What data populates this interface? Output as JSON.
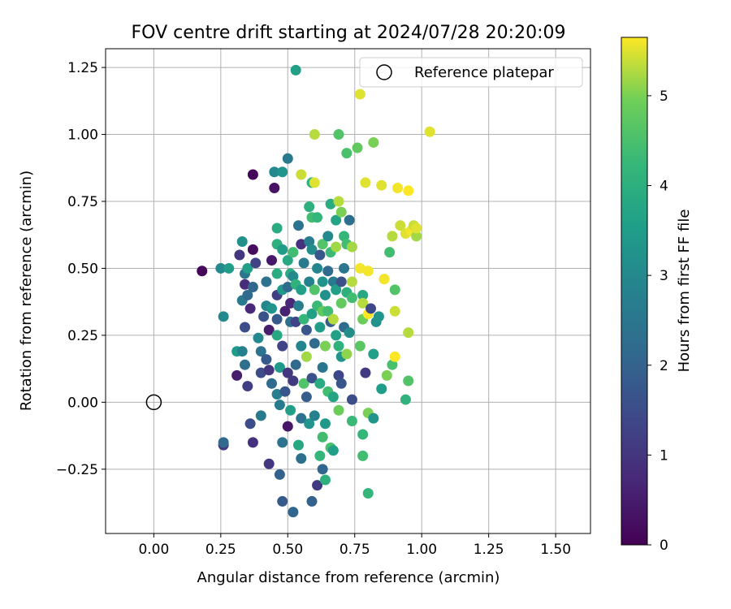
{
  "chart_data": {
    "type": "scatter",
    "title": "FOV centre drift starting at 2024/07/28 20:20:09",
    "xlabel": "Angular distance from reference (arcmin)",
    "ylabel": "Rotation from reference (arcmin)",
    "xlim": [
      -0.18,
      1.63
    ],
    "ylim": [
      -0.49,
      1.32
    ],
    "xticks": [
      "0.00",
      "0.25",
      "0.50",
      "0.75",
      "1.00",
      "1.25",
      "1.50"
    ],
    "yticks": [
      "−0.25",
      "0.00",
      "0.25",
      "0.50",
      "0.75",
      "1.00",
      "1.25"
    ],
    "grid": true,
    "legend": {
      "placement": "top-right",
      "label": "Reference platepar"
    },
    "reference_point": {
      "x": 0.0,
      "y": 0.0
    },
    "colorbar": {
      "label": "Hours from first FF file",
      "colormap": "viridis",
      "range": [
        0,
        5.65
      ],
      "ticks": [
        "0",
        "1",
        "2",
        "3",
        "4",
        "5"
      ]
    },
    "points": [
      [
        0.18,
        0.49,
        0.1
      ],
      [
        0.25,
        0.5,
        3.0
      ],
      [
        0.28,
        0.5,
        3.5
      ],
      [
        0.26,
        0.32,
        3.0
      ],
      [
        0.26,
        -0.16,
        1.1
      ],
      [
        0.26,
        -0.15,
        2.2
      ],
      [
        0.31,
        0.19,
        3.5
      ],
      [
        0.31,
        0.1,
        0.5
      ],
      [
        0.33,
        0.19,
        2.8
      ],
      [
        0.33,
        0.38,
        2.6
      ],
      [
        0.32,
        0.55,
        1.0
      ],
      [
        0.33,
        0.6,
        3.2
      ],
      [
        0.34,
        0.48,
        2.5
      ],
      [
        0.34,
        0.44,
        0.8
      ],
      [
        0.35,
        0.5,
        3.6
      ],
      [
        0.35,
        0.4,
        2.2
      ],
      [
        0.34,
        0.28,
        1.5
      ],
      [
        0.34,
        0.14,
        2.3
      ],
      [
        0.35,
        0.06,
        1.2
      ],
      [
        0.36,
        -0.08,
        1.5
      ],
      [
        0.36,
        0.35,
        0.7
      ],
      [
        0.37,
        0.57,
        0.2
      ],
      [
        0.37,
        0.43,
        2.1
      ],
      [
        0.38,
        0.52,
        1.3
      ],
      [
        0.37,
        0.85,
        0.1
      ],
      [
        0.37,
        -0.15,
        0.9
      ],
      [
        0.39,
        0.24,
        3.0
      ],
      [
        0.4,
        0.11,
        1.5
      ],
      [
        0.4,
        0.19,
        2.4
      ],
      [
        0.4,
        -0.05,
        2.6
      ],
      [
        0.41,
        0.32,
        1.6
      ],
      [
        0.42,
        0.45,
        2.4
      ],
      [
        0.42,
        0.36,
        2.9
      ],
      [
        0.42,
        0.16,
        1.8
      ],
      [
        0.43,
        0.12,
        1.0
      ],
      [
        0.43,
        0.27,
        0.5
      ],
      [
        0.43,
        -0.23,
        1.0
      ],
      [
        0.44,
        0.53,
        0.4
      ],
      [
        0.44,
        0.35,
        3.3
      ],
      [
        0.44,
        0.07,
        2.2
      ],
      [
        0.45,
        0.86,
        3.0
      ],
      [
        0.45,
        0.8,
        0.3
      ],
      [
        0.46,
        0.59,
        4.0
      ],
      [
        0.46,
        0.65,
        3.9
      ],
      [
        0.46,
        0.48,
        3.9
      ],
      [
        0.46,
        0.4,
        1.2
      ],
      [
        0.46,
        0.31,
        1.8
      ],
      [
        0.46,
        0.25,
        3.8
      ],
      [
        0.46,
        0.03,
        2.7
      ],
      [
        0.47,
        -0.01,
        2.6
      ],
      [
        0.47,
        -0.27,
        2.0
      ],
      [
        0.47,
        0.13,
        3.4
      ],
      [
        0.48,
        0.86,
        3.3
      ],
      [
        0.48,
        0.57,
        3.5
      ],
      [
        0.48,
        0.42,
        3.4
      ],
      [
        0.48,
        0.21,
        1.3
      ],
      [
        0.48,
        -0.37,
        1.8
      ],
      [
        0.48,
        -0.15,
        2.4
      ],
      [
        0.49,
        0.34,
        0.6
      ],
      [
        0.49,
        0.04,
        1.7
      ],
      [
        0.5,
        0.91,
        2.6
      ],
      [
        0.5,
        0.53,
        3.8
      ],
      [
        0.5,
        0.43,
        2.2
      ],
      [
        0.5,
        0.11,
        1.0
      ],
      [
        0.5,
        -0.09,
        0.4
      ],
      [
        0.51,
        0.48,
        3.9
      ],
      [
        0.51,
        0.37,
        0.7
      ],
      [
        0.51,
        0.3,
        2.3
      ],
      [
        0.51,
        -0.03,
        3.6
      ],
      [
        0.52,
        0.56,
        4.4
      ],
      [
        0.52,
        0.47,
        3.0
      ],
      [
        0.52,
        0.08,
        1.1
      ],
      [
        0.52,
        -0.41,
        2.1
      ],
      [
        0.53,
        1.24,
        3.6
      ],
      [
        0.53,
        0.3,
        1.3
      ],
      [
        0.53,
        0.14,
        2.2
      ],
      [
        0.53,
        0.44,
        4.1
      ],
      [
        0.54,
        0.66,
        2.4
      ],
      [
        0.54,
        0.36,
        2.7
      ],
      [
        0.54,
        -0.16,
        3.8
      ],
      [
        0.55,
        0.85,
        5.4
      ],
      [
        0.55,
        0.59,
        0.9
      ],
      [
        0.55,
        0.42,
        3.6
      ],
      [
        0.55,
        0.21,
        2.9
      ],
      [
        0.55,
        -0.06,
        2.4
      ],
      [
        0.55,
        -0.21,
        2.3
      ],
      [
        0.56,
        0.52,
        2.6
      ],
      [
        0.56,
        0.31,
        4.2
      ],
      [
        0.56,
        0.07,
        4.6
      ],
      [
        0.57,
        0.27,
        1.7
      ],
      [
        0.57,
        0.17,
        5.2
      ],
      [
        0.57,
        0.02,
        1.9
      ],
      [
        0.58,
        0.73,
        4.0
      ],
      [
        0.58,
        0.6,
        2.7
      ],
      [
        0.58,
        0.45,
        2.8
      ],
      [
        0.58,
        -0.08,
        3.3
      ],
      [
        0.59,
        0.82,
        4.1
      ],
      [
        0.59,
        0.69,
        4.4
      ],
      [
        0.59,
        0.57,
        3.1
      ],
      [
        0.59,
        0.33,
        3.6
      ],
      [
        0.59,
        0.09,
        1.6
      ],
      [
        0.59,
        -0.37,
        2.0
      ],
      [
        0.6,
        1.0,
        5.3
      ],
      [
        0.6,
        0.82,
        5.5
      ],
      [
        0.6,
        0.42,
        4.6
      ],
      [
        0.6,
        0.22,
        2.2
      ],
      [
        0.6,
        -0.05,
        2.8
      ],
      [
        0.61,
        0.69,
        4.2
      ],
      [
        0.61,
        0.5,
        2.9
      ],
      [
        0.61,
        0.36,
        4.3
      ],
      [
        0.61,
        -0.31,
        1.1
      ],
      [
        0.62,
        0.55,
        1.7
      ],
      [
        0.62,
        0.28,
        3.5
      ],
      [
        0.62,
        0.07,
        3.9
      ],
      [
        0.62,
        -0.2,
        4.2
      ],
      [
        0.63,
        0.59,
        4.6
      ],
      [
        0.63,
        0.45,
        3.3
      ],
      [
        0.63,
        0.34,
        4.8
      ],
      [
        0.63,
        0.13,
        2.5
      ],
      [
        0.63,
        -0.13,
        4.4
      ],
      [
        0.63,
        -0.25,
        2.1
      ],
      [
        0.64,
        0.4,
        3.2
      ],
      [
        0.64,
        0.21,
        5.0
      ],
      [
        0.64,
        -0.08,
        3.4
      ],
      [
        0.64,
        -0.29,
        4.0
      ],
      [
        0.65,
        0.62,
        3.0
      ],
      [
        0.65,
        0.49,
        2.2
      ],
      [
        0.65,
        0.34,
        4.4
      ],
      [
        0.65,
        0.04,
        4.4
      ],
      [
        0.66,
        0.74,
        3.9
      ],
      [
        0.66,
        0.56,
        4.3
      ],
      [
        0.66,
        0.3,
        1.9
      ],
      [
        0.66,
        -0.17,
        4.5
      ],
      [
        0.67,
        0.45,
        2.6
      ],
      [
        0.67,
        0.31,
        5.3
      ],
      [
        0.67,
        0.02,
        3.7
      ],
      [
        0.67,
        -0.18,
        3.6
      ],
      [
        0.68,
        0.68,
        3.7
      ],
      [
        0.68,
        0.58,
        5.2
      ],
      [
        0.68,
        0.42,
        3.6
      ],
      [
        0.68,
        0.25,
        3.6
      ],
      [
        0.69,
        0.75,
        5.3
      ],
      [
        0.69,
        0.21,
        4.1
      ],
      [
        0.69,
        0.1,
        1.4
      ],
      [
        0.69,
        1.0,
        4.6
      ],
      [
        0.69,
        -0.03,
        4.9
      ],
      [
        0.7,
        0.71,
        5.0
      ],
      [
        0.7,
        0.45,
        1.6
      ],
      [
        0.7,
        0.37,
        4.8
      ],
      [
        0.7,
        0.17,
        3.3
      ],
      [
        0.7,
        0.07,
        1.7
      ],
      [
        0.71,
        0.62,
        4.2
      ],
      [
        0.71,
        0.5,
        2.5
      ],
      [
        0.71,
        0.28,
        2.2
      ],
      [
        0.72,
        0.93,
        4.5
      ],
      [
        0.72,
        0.59,
        4.4
      ],
      [
        0.72,
        0.41,
        4.0
      ],
      [
        0.72,
        0.18,
        5.1
      ],
      [
        0.73,
        0.68,
        2.3
      ],
      [
        0.73,
        0.26,
        3.1
      ],
      [
        0.74,
        0.58,
        5.2
      ],
      [
        0.74,
        0.45,
        5.3
      ],
      [
        0.74,
        0.39,
        4.4
      ],
      [
        0.74,
        0.01,
        1.5
      ],
      [
        0.74,
        -0.07,
        4.3
      ],
      [
        0.76,
        0.95,
        4.8
      ],
      [
        0.77,
        1.15,
        5.5
      ],
      [
        0.77,
        0.5,
        5.6
      ],
      [
        0.77,
        0.21,
        4.7
      ],
      [
        0.78,
        0.4,
        3.8
      ],
      [
        0.78,
        0.37,
        5.3
      ],
      [
        0.78,
        0.31,
        4.9
      ],
      [
        0.78,
        -0.2,
        4.4
      ],
      [
        0.78,
        -0.12,
        4.2
      ],
      [
        0.79,
        0.82,
        5.5
      ],
      [
        0.79,
        0.11,
        1.1
      ],
      [
        0.8,
        0.49,
        5.6
      ],
      [
        0.8,
        0.33,
        5.7
      ],
      [
        0.8,
        -0.04,
        5.0
      ],
      [
        0.8,
        -0.34,
        4.2
      ],
      [
        0.81,
        0.35,
        1.4
      ],
      [
        0.82,
        0.97,
        5.0
      ],
      [
        0.82,
        0.18,
        3.6
      ],
      [
        0.82,
        -0.06,
        3.3
      ],
      [
        0.83,
        0.3,
        3.2
      ],
      [
        0.84,
        0.32,
        3.3
      ],
      [
        0.85,
        0.81,
        5.5
      ],
      [
        0.85,
        0.05,
        3.5
      ],
      [
        0.86,
        0.46,
        5.6
      ],
      [
        0.87,
        0.1,
        5.0
      ],
      [
        0.88,
        0.56,
        4.4
      ],
      [
        0.89,
        0.62,
        5.3
      ],
      [
        0.89,
        0.14,
        4.5
      ],
      [
        0.9,
        0.42,
        4.6
      ],
      [
        0.9,
        0.34,
        5.4
      ],
      [
        0.9,
        0.17,
        5.7
      ],
      [
        0.91,
        0.8,
        5.6
      ],
      [
        0.92,
        0.66,
        5.4
      ],
      [
        0.94,
        0.63,
        5.5
      ],
      [
        0.94,
        0.01,
        4.1
      ],
      [
        0.95,
        0.79,
        5.7
      ],
      [
        0.95,
        0.26,
        5.3
      ],
      [
        0.95,
        0.08,
        4.6
      ],
      [
        0.96,
        0.64,
        5.6
      ],
      [
        0.97,
        0.66,
        5.4
      ],
      [
        0.98,
        0.62,
        5.2
      ],
      [
        0.98,
        0.65,
        5.5
      ],
      [
        1.03,
        1.01,
        5.5
      ]
    ]
  }
}
